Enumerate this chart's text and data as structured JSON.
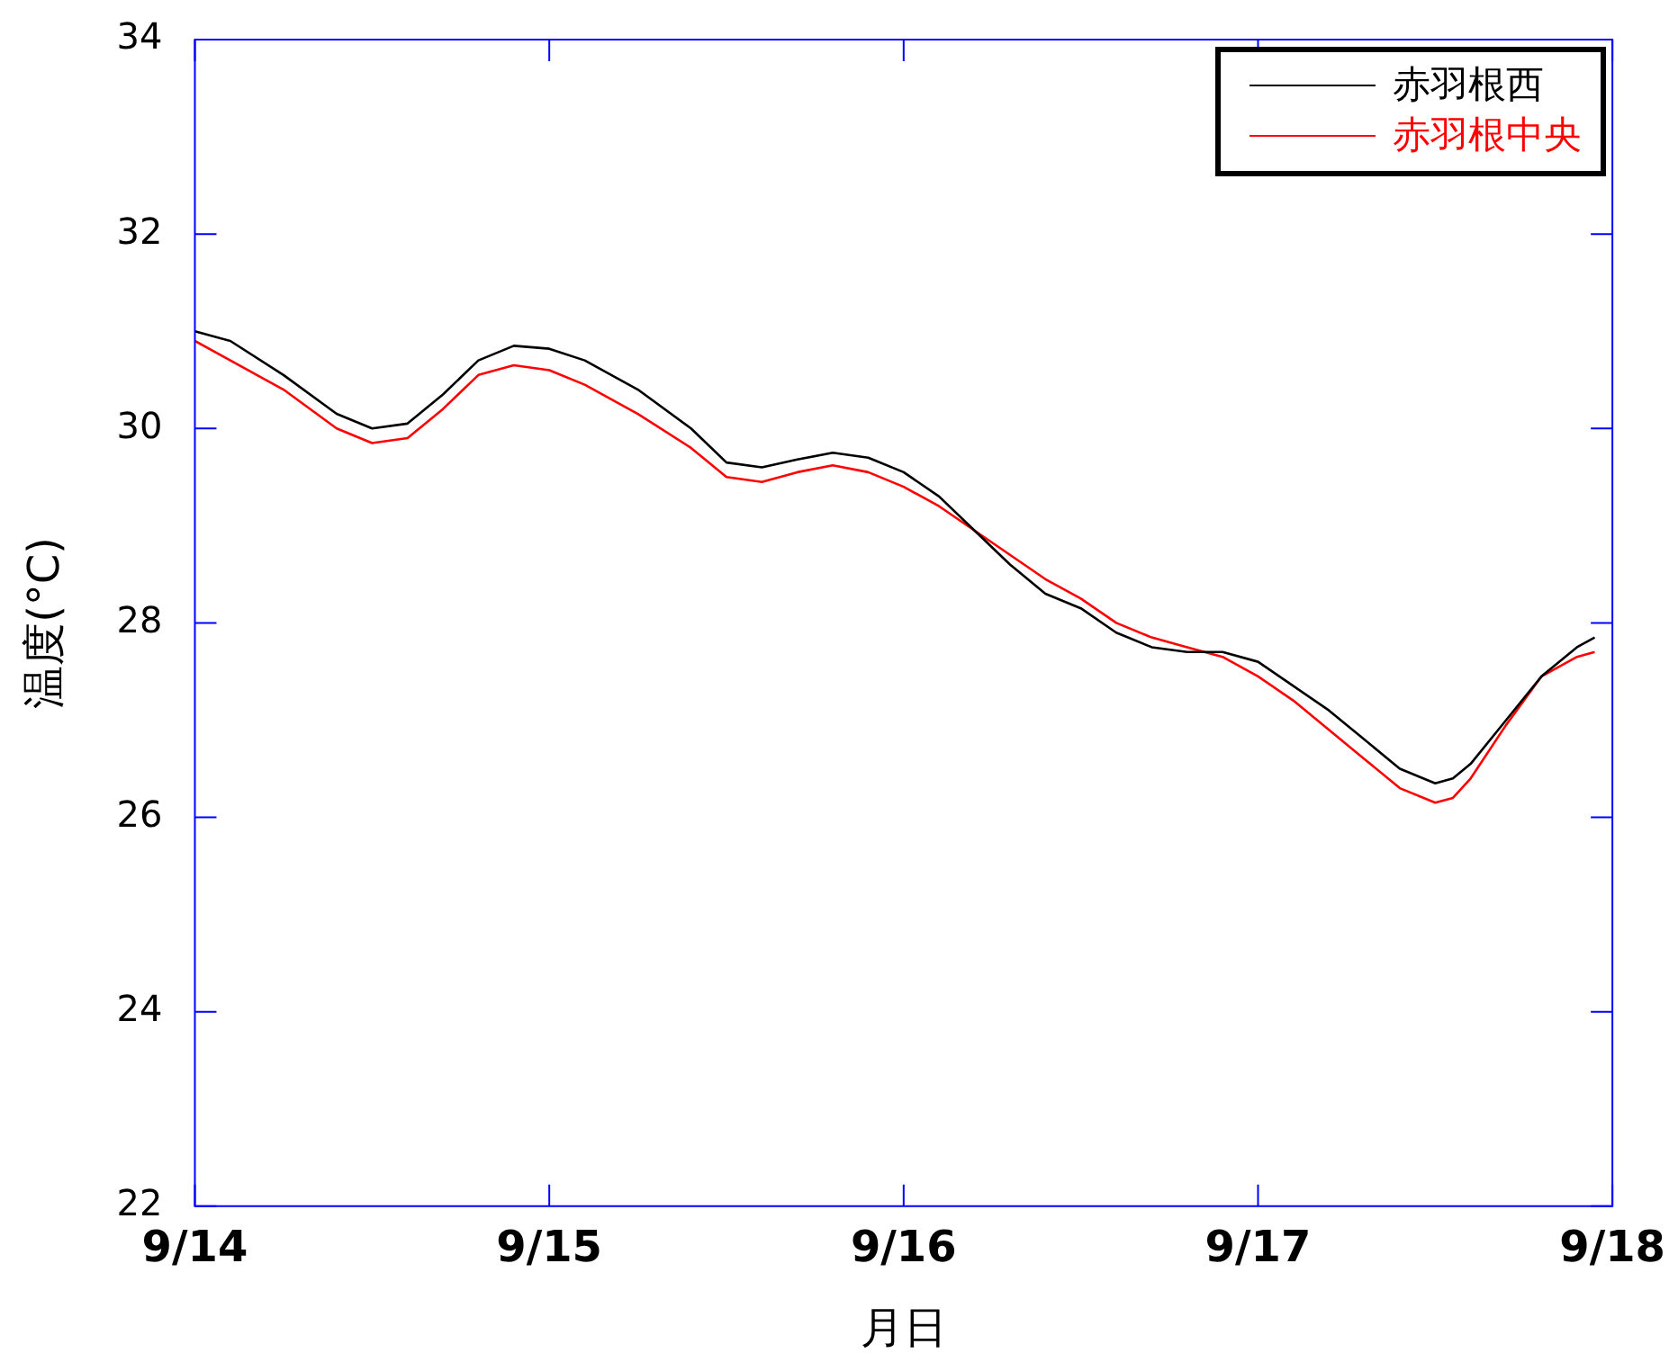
{
  "chart_data": {
    "type": "line",
    "xlabel": "月日",
    "ylabel": "温度(°C)",
    "xlim": [
      "--09-14",
      "--09-18"
    ],
    "xticks": [
      {
        "value": "--09-14",
        "label": "9/14"
      },
      {
        "value": "--09-15",
        "label": "9/15"
      },
      {
        "value": "--09-16",
        "label": "9/16"
      },
      {
        "value": "--09-17",
        "label": "9/17"
      },
      {
        "value": "--09-18",
        "label": "9/18"
      }
    ],
    "ylim": [
      22,
      34
    ],
    "yticks": [
      22,
      24,
      26,
      28,
      30,
      32,
      34
    ],
    "grid": false,
    "legend": "top right",
    "marker": "none",
    "line_style": "solid",
    "x": [
      "--09-14T00:00",
      "--09-14T02:24",
      "--09-14T06:00",
      "--09-14T09:36",
      "--09-14T12:00",
      "--09-14T14:24",
      "--09-14T16:48",
      "--09-14T19:12",
      "--09-14T21:36",
      "--09-15T00:00",
      "--09-15T02:24",
      "--09-15T06:00",
      "--09-15T09:36",
      "--09-15T12:00",
      "--09-15T14:24",
      "--09-15T16:48",
      "--09-15T19:12",
      "--09-15T21:36",
      "--09-16T00:00",
      "--09-16T02:24",
      "--09-16T04:48",
      "--09-16T07:12",
      "--09-16T09:36",
      "--09-16T12:00",
      "--09-16T14:24",
      "--09-16T16:48",
      "--09-16T19:12",
      "--09-16T21:36",
      "--09-17T00:00",
      "--09-17T02:24",
      "--09-17T04:48",
      "--09-17T07:12",
      "--09-17T09:36",
      "--09-17T12:00",
      "--09-17T13:12",
      "--09-17T14:24",
      "--09-17T16:48",
      "--09-17T19:12",
      "--09-17T21:36",
      "--09-17T22:48"
    ],
    "series": [
      {
        "name": "赤羽根西",
        "color": "#000000",
        "values": [
          31.0,
          30.9,
          30.55,
          30.15,
          30.0,
          30.05,
          30.35,
          30.7,
          30.85,
          30.82,
          30.7,
          30.4,
          30.0,
          29.65,
          29.6,
          29.68,
          29.75,
          29.7,
          29.55,
          29.3,
          28.95,
          28.6,
          28.3,
          28.15,
          27.9,
          27.75,
          27.7,
          27.7,
          27.6,
          27.35,
          27.1,
          26.8,
          26.5,
          26.35,
          26.4,
          26.55,
          27.0,
          27.45,
          27.75,
          27.85
        ]
      },
      {
        "name": "赤羽根中央",
        "color": "#ff0000",
        "values": [
          30.9,
          30.7,
          30.4,
          30.0,
          29.85,
          29.9,
          30.2,
          30.55,
          30.65,
          30.6,
          30.45,
          30.15,
          29.8,
          29.5,
          29.45,
          29.55,
          29.62,
          29.55,
          29.4,
          29.2,
          28.95,
          28.7,
          28.45,
          28.25,
          28.0,
          27.85,
          27.75,
          27.65,
          27.45,
          27.2,
          26.9,
          26.6,
          26.3,
          26.15,
          26.2,
          26.4,
          26.95,
          27.45,
          27.65,
          27.7
        ]
      }
    ]
  }
}
